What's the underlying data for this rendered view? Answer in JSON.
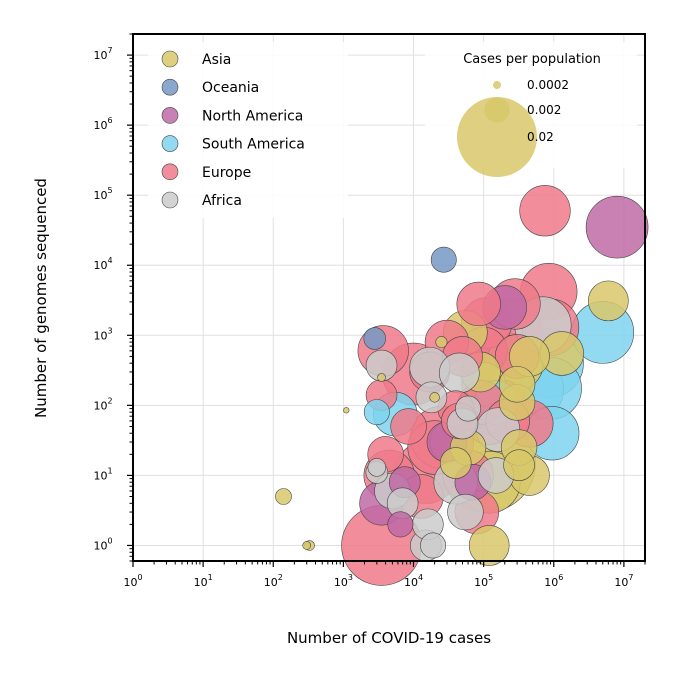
{
  "chart_data": {
    "type": "scatter",
    "xlabel": "Number of COVID-19 cases",
    "ylabel": "Number of genomes sequenced",
    "x_scale": "log",
    "y_scale": "log",
    "xlim": [
      1,
      20000000
    ],
    "ylim": [
      0.6,
      20000000
    ],
    "grid": true,
    "x_ticks": [
      {
        "value": 1,
        "base": "10",
        "exp": "0"
      },
      {
        "value": 10,
        "base": "10",
        "exp": "1"
      },
      {
        "value": 100,
        "base": "10",
        "exp": "2"
      },
      {
        "value": 1000,
        "base": "10",
        "exp": "3"
      },
      {
        "value": 10000,
        "base": "10",
        "exp": "4"
      },
      {
        "value": 100000,
        "base": "10",
        "exp": "5"
      },
      {
        "value": 1000000,
        "base": "10",
        "exp": "6"
      },
      {
        "value": 10000000,
        "base": "10",
        "exp": "7"
      }
    ],
    "y_ticks": [
      {
        "value": 1,
        "base": "10",
        "exp": "0"
      },
      {
        "value": 10,
        "base": "10",
        "exp": "1"
      },
      {
        "value": 100,
        "base": "10",
        "exp": "2"
      },
      {
        "value": 1000,
        "base": "10",
        "exp": "3"
      },
      {
        "value": 10000,
        "base": "10",
        "exp": "4"
      },
      {
        "value": 100000,
        "base": "10",
        "exp": "5"
      },
      {
        "value": 1000000,
        "base": "10",
        "exp": "6"
      },
      {
        "value": 10000000,
        "base": "10",
        "exp": "7"
      }
    ],
    "legend_placement": "top-left",
    "size_legend": {
      "title": "Cases per population",
      "placement": "top-right",
      "entries": [
        {
          "label": "0.0002",
          "value": 0.0002
        },
        {
          "label": "0.002",
          "value": 0.002
        },
        {
          "label": "0.02",
          "value": 0.02
        }
      ]
    },
    "series": [
      {
        "name": "Asia",
        "color": "#d8c86a",
        "points": [
          {
            "x": 140,
            "y": 5,
            "s": 0.0008
          },
          {
            "x": 300,
            "y": 1,
            "s": 0.0002
          },
          {
            "x": 330,
            "y": 1,
            "s": 0.0003
          },
          {
            "x": 1100,
            "y": 85,
            "s": 0.0001
          },
          {
            "x": 3500,
            "y": 250,
            "s": 0.0002
          },
          {
            "x": 20000,
            "y": 130,
            "s": 0.0003
          },
          {
            "x": 25000,
            "y": 800,
            "s": 0.0004
          },
          {
            "x": 55000,
            "y": 1100,
            "s": 0.006
          },
          {
            "x": 40000,
            "y": 15,
            "s": 0.003
          },
          {
            "x": 60000,
            "y": 25,
            "s": 0.004
          },
          {
            "x": 90000,
            "y": 300,
            "s": 0.005
          },
          {
            "x": 100000,
            "y": 200,
            "s": 0.006
          },
          {
            "x": 110000,
            "y": 15,
            "s": 0.03
          },
          {
            "x": 120000,
            "y": 8,
            "s": 0.012
          },
          {
            "x": 120000,
            "y": 1,
            "s": 0.005
          },
          {
            "x": 200000,
            "y": 400,
            "s": 0.012
          },
          {
            "x": 280000,
            "y": 400,
            "s": 0.01
          },
          {
            "x": 300000,
            "y": 110,
            "s": 0.004
          },
          {
            "x": 300000,
            "y": 200,
            "s": 0.004
          },
          {
            "x": 320000,
            "y": 25,
            "s": 0.004
          },
          {
            "x": 320000,
            "y": 14,
            "s": 0.003
          },
          {
            "x": 450000,
            "y": 10,
            "s": 0.005
          },
          {
            "x": 450000,
            "y": 500,
            "s": 0.005
          },
          {
            "x": 1300000,
            "y": 550,
            "s": 0.006
          },
          {
            "x": 6000000,
            "y": 3100,
            "s": 0.005
          }
        ]
      },
      {
        "name": "Oceania",
        "color": "#7699c4",
        "points": [
          {
            "x": 2800,
            "y": 900,
            "s": 0.0015
          },
          {
            "x": 27000,
            "y": 12000,
            "s": 0.002
          }
        ]
      },
      {
        "name": "North America",
        "color": "#c06aa6",
        "points": [
          {
            "x": 3500,
            "y": 4,
            "s": 0.006
          },
          {
            "x": 6500,
            "y": 2,
            "s": 0.002
          },
          {
            "x": 7500,
            "y": 8,
            "s": 0.003
          },
          {
            "x": 30000,
            "y": 30,
            "s": 0.005
          },
          {
            "x": 70000,
            "y": 8,
            "s": 0.004
          },
          {
            "x": 100000,
            "y": 90,
            "s": 0.009
          },
          {
            "x": 140000,
            "y": 350,
            "s": 0.012
          },
          {
            "x": 200000,
            "y": 2500,
            "s": 0.006
          },
          {
            "x": 8000000,
            "y": 35000,
            "s": 0.012
          }
        ]
      },
      {
        "name": "South America",
        "color": "#7fd3ef",
        "points": [
          {
            "x": 3000,
            "y": 80,
            "s": 0.002
          },
          {
            "x": 5500,
            "y": 75,
            "s": 0.006
          },
          {
            "x": 150000,
            "y": 110,
            "s": 0.006
          },
          {
            "x": 500000,
            "y": 170,
            "s": 0.012
          },
          {
            "x": 850000,
            "y": 400,
            "s": 0.015
          },
          {
            "x": 900000,
            "y": 175,
            "s": 0.012
          },
          {
            "x": 950000,
            "y": 40,
            "s": 0.009
          },
          {
            "x": 5000000,
            "y": 1100,
            "s": 0.012
          }
        ]
      },
      {
        "name": "Europe",
        "color": "#f07a89",
        "points": [
          {
            "x": 3500,
            "y": 1,
            "s": 0.02
          },
          {
            "x": 3500,
            "y": 140,
            "s": 0.003
          },
          {
            "x": 3700,
            "y": 600,
            "s": 0.008
          },
          {
            "x": 4000,
            "y": 20,
            "s": 0.004
          },
          {
            "x": 4500,
            "y": 10,
            "s": 0.008
          },
          {
            "x": 8500,
            "y": 50,
            "s": 0.004
          },
          {
            "x": 10000,
            "y": 280,
            "s": 0.012
          },
          {
            "x": 13000,
            "y": 5,
            "s": 0.006
          },
          {
            "x": 15000,
            "y": 11,
            "s": 0.012
          },
          {
            "x": 17000,
            "y": 300,
            "s": 0.005
          },
          {
            "x": 20000,
            "y": 25,
            "s": 0.009
          },
          {
            "x": 25000,
            "y": 35,
            "s": 0.012
          },
          {
            "x": 30000,
            "y": 800,
            "s": 0.006
          },
          {
            "x": 35000,
            "y": 30,
            "s": 0.006
          },
          {
            "x": 40000,
            "y": 90,
            "s": 0.004
          },
          {
            "x": 45000,
            "y": 60,
            "s": 0.004
          },
          {
            "x": 50000,
            "y": 500,
            "s": 0.005
          },
          {
            "x": 60000,
            "y": 10,
            "s": 0.008
          },
          {
            "x": 80000,
            "y": 3,
            "s": 0.006
          },
          {
            "x": 85000,
            "y": 2800,
            "s": 0.006
          },
          {
            "x": 95000,
            "y": 110,
            "s": 0.006
          },
          {
            "x": 100000,
            "y": 600,
            "s": 0.007
          },
          {
            "x": 110000,
            "y": 1500,
            "s": 0.008
          },
          {
            "x": 120000,
            "y": 60,
            "s": 0.007
          },
          {
            "x": 180000,
            "y": 100,
            "s": 0.008
          },
          {
            "x": 220000,
            "y": 60,
            "s": 0.006
          },
          {
            "x": 250000,
            "y": 1200,
            "s": 0.012
          },
          {
            "x": 280000,
            "y": 2800,
            "s": 0.008
          },
          {
            "x": 300000,
            "y": 500,
            "s": 0.006
          },
          {
            "x": 450000,
            "y": 55,
            "s": 0.007
          },
          {
            "x": 750000,
            "y": 60000,
            "s": 0.008
          },
          {
            "x": 850000,
            "y": 4200,
            "s": 0.01
          },
          {
            "x": 900000,
            "y": 1300,
            "s": 0.01
          }
        ]
      },
      {
        "name": "Africa",
        "color": "#cbcbcb",
        "points": [
          {
            "x": 3000,
            "y": 11,
            "s": 0.0015
          },
          {
            "x": 3000,
            "y": 13,
            "s": 0.001
          },
          {
            "x": 3500,
            "y": 370,
            "s": 0.003
          },
          {
            "x": 5000,
            "y": 6,
            "s": 0.004
          },
          {
            "x": 7000,
            "y": 4,
            "s": 0.003
          },
          {
            "x": 15000,
            "y": 1,
            "s": 0.003
          },
          {
            "x": 16000,
            "y": 2,
            "s": 0.003
          },
          {
            "x": 17000,
            "y": 350,
            "s": 0.005
          },
          {
            "x": 18000,
            "y": 130,
            "s": 0.003
          },
          {
            "x": 19000,
            "y": 1,
            "s": 0.002
          },
          {
            "x": 40000,
            "y": 8,
            "s": 0.006
          },
          {
            "x": 45000,
            "y": 290,
            "s": 0.005
          },
          {
            "x": 50000,
            "y": 55,
            "s": 0.003
          },
          {
            "x": 55000,
            "y": 3,
            "s": 0.004
          },
          {
            "x": 60000,
            "y": 90,
            "s": 0.002
          },
          {
            "x": 150000,
            "y": 10,
            "s": 0.004
          },
          {
            "x": 160000,
            "y": 45,
            "s": 0.006
          },
          {
            "x": 700000,
            "y": 1400,
            "s": 0.01
          }
        ]
      }
    ]
  }
}
